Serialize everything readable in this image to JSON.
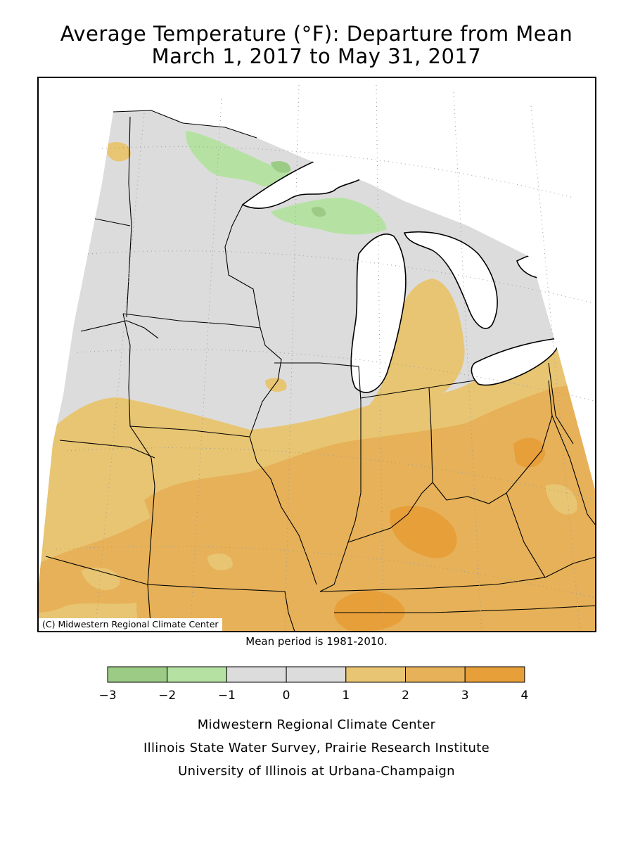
{
  "title_line1": "Average Temperature (°F): Departure from Mean",
  "title_line2": "March 1, 2017 to May 31, 2017",
  "copyright": "(C) Midwestern Regional Climate Center",
  "mean_period": "Mean period is 1981-2010.",
  "legend": {
    "ticks": [
      "-3",
      "-2",
      "-1",
      "0",
      "1",
      "2",
      "3",
      "4"
    ],
    "colors": [
      "#9ccb86",
      "#b5e2a3",
      "#dcdcdc",
      "#dcdcdc",
      "#e8c572",
      "#e6b158",
      "#e79f3a"
    ]
  },
  "colors": {
    "water": "#ffffff",
    "below_2": "#9ccb86",
    "below_1": "#b5e2a3",
    "near_normal": "#dcdcdc",
    "above_1": "#e8c572",
    "above_2": "#e6b158",
    "above_3": "#e79f3a"
  },
  "credits": [
    "Midwestern Regional Climate Center",
    "Illinois State Water Survey, Prairie Research Institute",
    "University of Illinois at Urbana-Champaign"
  ]
}
